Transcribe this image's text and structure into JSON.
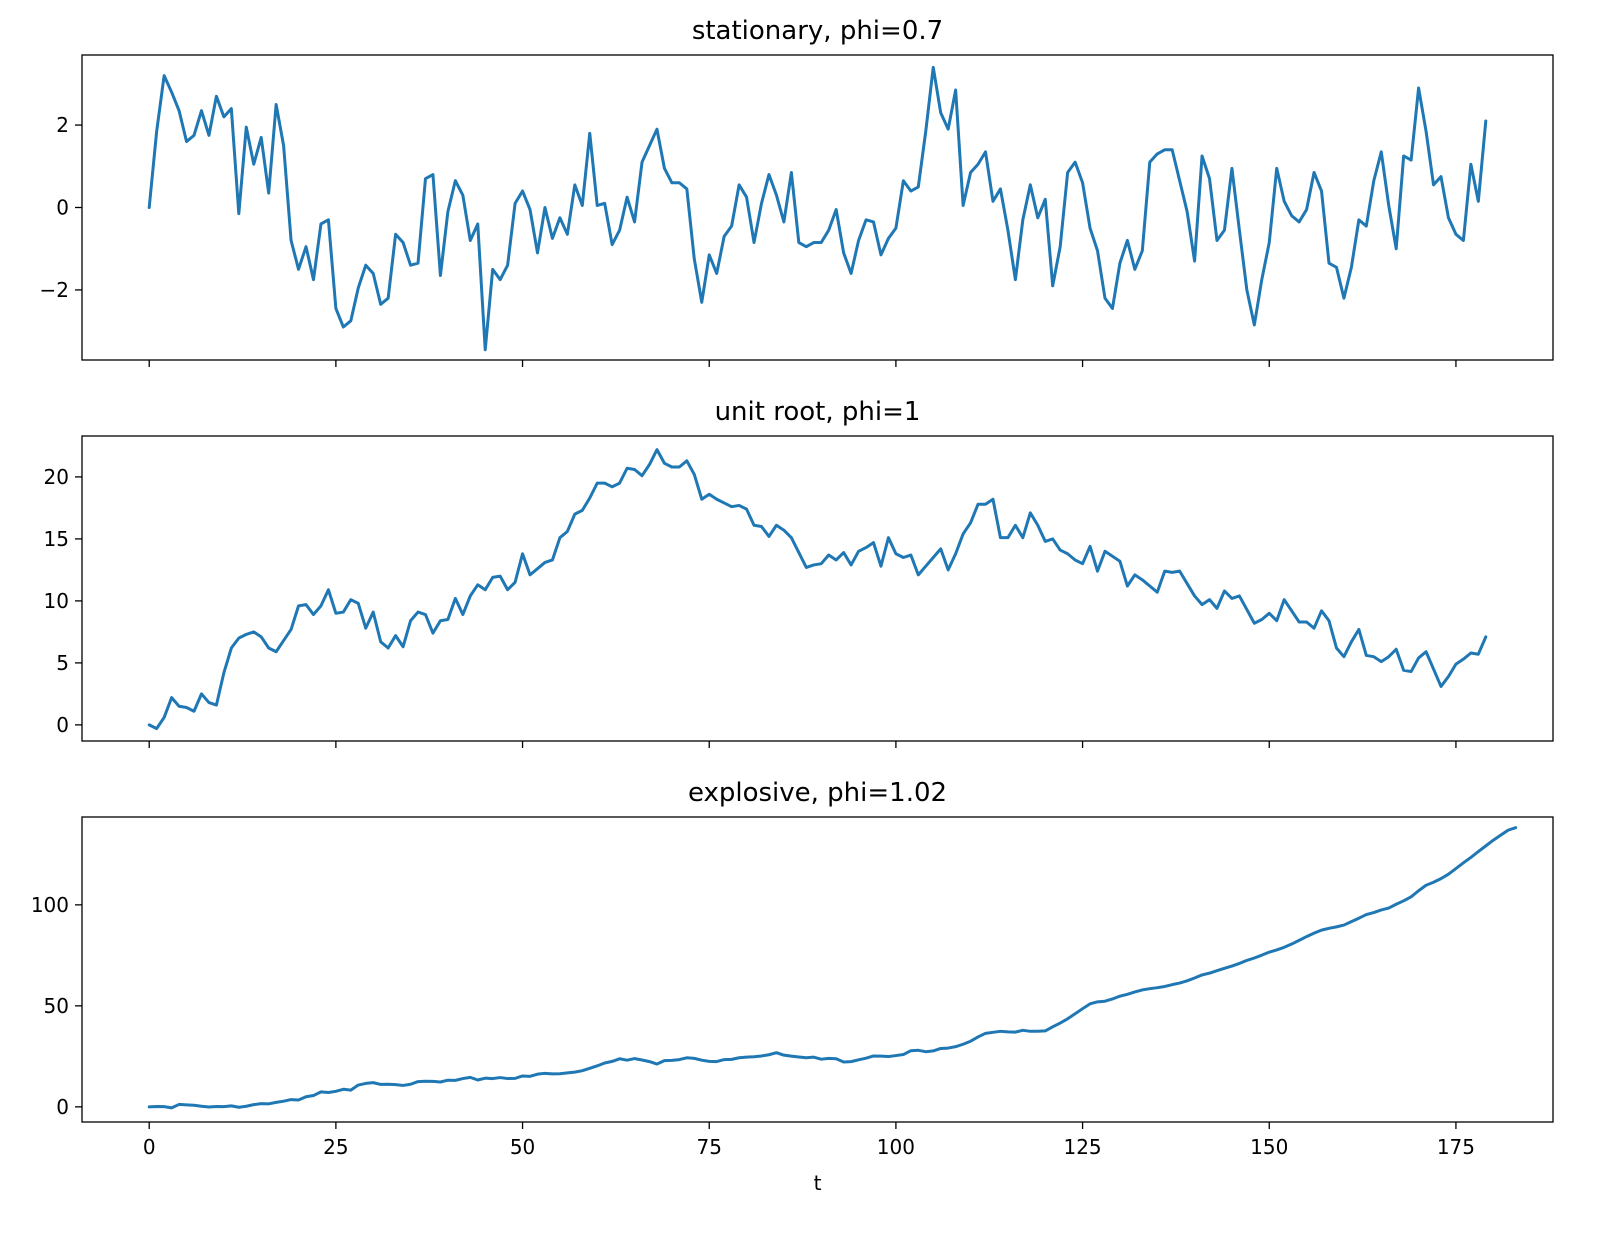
{
  "chart_data": [
    {
      "type": "line",
      "title": "stationary, phi=0.7",
      "xlabel": "",
      "ylabel": "",
      "xlim": [
        -9,
        188
      ],
      "ylim": [
        -3.7,
        3.7
      ],
      "xticks": [
        0,
        25,
        50,
        75,
        100,
        125,
        150,
        175
      ],
      "xtick_labels": [],
      "yticks": [
        -2,
        0,
        2
      ],
      "ytick_labels": [
        "−2",
        "0",
        "2"
      ],
      "grid": false,
      "color": "#1f77b4",
      "series": [
        {
          "values": [
            0,
            1.85,
            3.2,
            2.8,
            2.35,
            1.6,
            1.75,
            2.35,
            1.75,
            2.7,
            2.2,
            2.4,
            -0.15,
            1.95,
            1.05,
            1.7,
            0.35,
            2.5,
            1.5,
            -0.8,
            -1.5,
            -0.95,
            -1.75,
            -0.4,
            -0.3,
            -2.45,
            -2.9,
            -2.75,
            -1.95,
            -1.4,
            -1.6,
            -2.35,
            -2.2,
            -0.65,
            -0.85,
            -1.4,
            -1.35,
            0.7,
            0.8,
            -1.65,
            -0.1,
            0.65,
            0.3,
            -0.8,
            -0.4,
            -3.45,
            -1.5,
            -1.75,
            -1.4,
            0.1,
            0.4,
            -0.05,
            -1.1,
            0,
            -0.75,
            -0.25,
            -0.65,
            0.55,
            0.05,
            1.8,
            0.05,
            0.1,
            -0.9,
            -0.55,
            0.25,
            -0.35,
            1.1,
            1.5,
            1.9,
            0.95,
            0.6,
            0.6,
            0.45,
            -1.25,
            -2.3,
            -1.15,
            -1.6,
            -0.7,
            -0.45,
            0.55,
            0.25,
            -0.85,
            0.1,
            0.8,
            0.3,
            -0.35,
            0.85,
            -0.85,
            -0.95,
            -0.85,
            -0.85,
            -0.55,
            -0.05,
            -1.1,
            -1.6,
            -0.8,
            -0.3,
            -0.35,
            -1.15,
            -0.75,
            -0.5,
            0.65,
            0.4,
            0.5,
            1.85,
            3.4,
            2.3,
            1.9,
            2.85,
            0.05,
            0.85,
            1.05,
            1.35,
            0.15,
            0.45,
            -0.55,
            -1.75,
            -0.3,
            0.55,
            -0.25,
            0.2,
            -1.9,
            -0.95,
            0.85,
            1.1,
            0.6,
            -0.5,
            -1.05,
            -2.2,
            -2.45,
            -1.35,
            -0.8,
            -1.5,
            -1.05,
            1.1,
            1.3,
            1.4,
            1.4,
            0.65,
            -0.1,
            -1.3,
            1.25,
            0.7,
            -0.8,
            -0.55,
            0.95,
            -0.55,
            -2.0,
            -2.85,
            -1.75,
            -0.85,
            0.95,
            0.15,
            -0.2,
            -0.35,
            -0.05,
            0.85,
            0.4,
            -1.35,
            -1.45,
            -2.2,
            -1.45,
            -0.3,
            -0.45,
            0.65,
            1.35,
            0.05,
            -1.0,
            1.25,
            1.15,
            2.9,
            1.85,
            0.55,
            0.75,
            -0.25,
            -0.65,
            -0.8,
            1.05,
            0.15,
            2.1
          ]
        }
      ]
    },
    {
      "type": "line",
      "title": "unit root, phi=1",
      "xlabel": "",
      "ylabel": "",
      "xlim": [
        -9,
        188
      ],
      "ylim": [
        -1.3,
        23.3
      ],
      "xticks": [
        0,
        25,
        50,
        75,
        100,
        125,
        150,
        175
      ],
      "xtick_labels": [],
      "yticks": [
        0,
        5,
        10,
        15,
        20
      ],
      "ytick_labels": [
        "0",
        "5",
        "10",
        "15",
        "20"
      ],
      "grid": false,
      "color": "#1f77b4",
      "series": [
        {
          "values": [
            0,
            -0.3,
            0.6,
            2.2,
            1.5,
            1.4,
            1.1,
            2.5,
            1.8,
            1.6,
            4.2,
            6.2,
            7.0,
            7.3,
            7.5,
            7.1,
            6.2,
            5.9,
            6.8,
            7.7,
            9.6,
            9.7,
            8.9,
            9.6,
            10.9,
            9.0,
            9.1,
            10.1,
            9.8,
            7.8,
            9.1,
            6.7,
            6.2,
            7.2,
            6.3,
            8.4,
            9.1,
            8.9,
            7.4,
            8.4,
            8.5,
            10.2,
            8.9,
            10.4,
            11.3,
            10.9,
            11.9,
            12.0,
            10.9,
            11.5,
            13.8,
            12.1,
            12.6,
            13.1,
            13.3,
            15.1,
            15.6,
            17.0,
            17.3,
            18.3,
            19.5,
            19.5,
            19.2,
            19.5,
            20.7,
            20.6,
            20.1,
            21.0,
            22.2,
            21.1,
            20.8,
            20.8,
            21.3,
            20.2,
            18.2,
            18.6,
            18.2,
            17.9,
            17.6,
            17.7,
            17.4,
            16.1,
            16.0,
            15.2,
            16.1,
            15.7,
            15.1,
            13.9,
            12.7,
            12.9,
            13.0,
            13.7,
            13.3,
            13.9,
            12.9,
            14.0,
            14.3,
            14.7,
            12.8,
            15.1,
            13.8,
            13.5,
            13.7,
            12.1,
            12.8,
            13.5,
            14.2,
            12.5,
            13.8,
            15.4,
            16.3,
            17.8,
            17.8,
            18.2,
            15.1,
            15.1,
            16.1,
            15.1,
            17.1,
            16.1,
            14.8,
            15.0,
            14.1,
            13.8,
            13.3,
            13.0,
            14.4,
            12.4,
            14.0,
            13.6,
            13.2,
            11.2,
            12.1,
            11.7,
            11.2,
            10.7,
            12.4,
            12.3,
            12.4,
            11.4,
            10.4,
            9.7,
            10.1,
            9.4,
            10.8,
            10.2,
            10.4,
            9.3,
            8.2,
            8.5,
            9.0,
            8.4,
            10.1,
            9.2,
            8.3,
            8.3,
            7.8,
            9.2,
            8.4,
            6.2,
            5.5,
            6.7,
            7.7,
            5.6,
            5.5,
            5.1,
            5.5,
            6.1,
            4.4,
            4.3,
            5.4,
            5.9,
            4.5,
            3.1,
            3.9,
            4.9,
            5.3,
            5.8,
            5.7,
            7.1
          ]
        }
      ]
    },
    {
      "type": "line",
      "title": "explosive, phi=1.02",
      "xlabel": "t",
      "ylabel": "",
      "xlim": [
        -9,
        188
      ],
      "ylim": [
        -7.5,
        143.5
      ],
      "xticks": [
        0,
        25,
        50,
        75,
        100,
        125,
        150,
        175
      ],
      "xtick_labels": [
        "0",
        "25",
        "50",
        "75",
        "100",
        "125",
        "150",
        "175"
      ],
      "yticks": [
        0,
        50,
        100
      ],
      "ytick_labels": [
        "0",
        "50",
        "100"
      ],
      "grid": false,
      "color": "#1f77b4",
      "series": [
        {
          "values": [
            0,
            0.2,
            0.1,
            -0.5,
            1.2,
            1.0,
            0.8,
            0.3,
            -0.1,
            0.2,
            0.1,
            0.5,
            -0.2,
            0.3,
            1.1,
            1.6,
            1.5,
            2.2,
            2.8,
            3.6,
            3.4,
            5.0,
            5.6,
            7.4,
            7.1,
            7.7,
            8.7,
            8.3,
            10.8,
            11.6,
            12.0,
            11.1,
            11.2,
            11.0,
            10.6,
            11.2,
            12.5,
            12.7,
            12.6,
            12.3,
            13.2,
            13.1,
            14.0,
            14.6,
            13.3,
            14.2,
            14.0,
            14.5,
            14.0,
            14.1,
            15.3,
            15.1,
            16.2,
            16.6,
            16.3,
            16.4,
            16.8,
            17.2,
            17.9,
            19.1,
            20.3,
            21.7,
            22.5,
            23.8,
            23.1,
            23.9,
            23.2,
            22.4,
            21.2,
            22.9,
            23.0,
            23.4,
            24.3,
            24.0,
            23.1,
            22.5,
            22.4,
            23.4,
            23.5,
            24.3,
            24.6,
            24.8,
            25.2,
            25.8,
            26.8,
            25.6,
            25.1,
            24.7,
            24.3,
            24.6,
            23.6,
            24.0,
            23.8,
            22.2,
            22.4,
            23.3,
            24.1,
            25.2,
            25.1,
            24.9,
            25.4,
            25.9,
            27.8,
            28.0,
            27.3,
            27.7,
            28.9,
            29.1,
            29.8,
            31.0,
            32.5,
            34.6,
            36.4,
            36.9,
            37.4,
            37.1,
            37.0,
            37.9,
            37.4,
            37.4,
            37.6,
            39.6,
            41.5,
            43.6,
            46.1,
            48.6,
            51.0,
            52.0,
            52.3,
            53.4,
            54.8,
            55.7,
            56.9,
            57.9,
            58.5,
            59.0,
            59.6,
            60.5,
            61.3,
            62.4,
            63.8,
            65.3,
            66.2,
            67.4,
            68.6,
            69.7,
            71.0,
            72.5,
            73.7,
            75.1,
            76.6,
            77.7,
            79.0,
            80.6,
            82.4,
            84.3,
            86.0,
            87.5,
            88.4,
            89.1,
            90.0,
            91.7,
            93.4,
            95.2,
            96.2,
            97.5,
            98.4,
            100.3,
            102.0,
            104.0,
            107.0,
            109.7,
            111.2,
            113.0,
            115.2,
            118.0,
            120.8,
            123.5,
            126.4,
            129.2,
            132.0,
            134.5,
            137.0,
            138.2
          ]
        }
      ]
    }
  ]
}
